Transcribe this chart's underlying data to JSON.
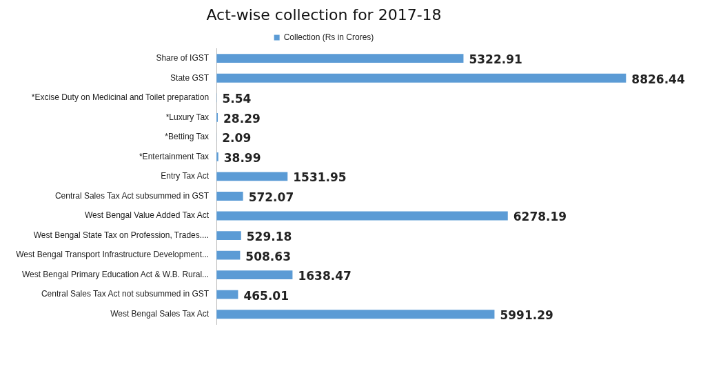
{
  "chart_data": {
    "type": "bar",
    "orientation": "horizontal",
    "title": "Act-wise collection for 2017-18",
    "categories": [
      "Share of IGST",
      "State GST",
      "*Excise Duty on Medicinal and Toilet preparation",
      "*Luxury Tax",
      "*Betting Tax",
      "*Entertainment Tax",
      "Entry Tax Act",
      "Central Sales Tax Act subsummed in GST",
      "West Bengal Value Added Tax Act",
      "West Bengal State Tax on Profession, Trades....",
      "West Bengal Transport Infrastructure Development...",
      "West Bengal Primary Education Act & W.B. Rural...",
      "Central Sales Tax Act not subsummed in GST",
      "West Bengal Sales Tax Act"
    ],
    "series": [
      {
        "name": "Collection (Rs in Crores)",
        "color": "#5b9bd5",
        "values": [
          5322.91,
          8826.44,
          5.54,
          28.29,
          2.09,
          38.99,
          1531.95,
          572.07,
          6278.19,
          529.18,
          508.63,
          1638.47,
          465.01,
          5991.29
        ]
      }
    ],
    "data_labels": true,
    "legend": "top",
    "tick_labels": "y",
    "grid": false
  }
}
